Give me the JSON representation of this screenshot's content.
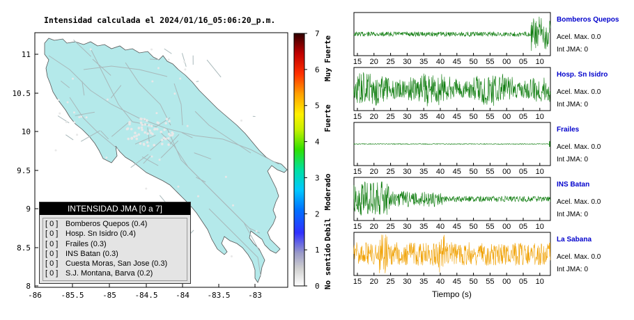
{
  "title": "Intensidad calculada el 2024/01/16_05:06:20_p.m.",
  "map": {
    "lon_ticks": [
      "-86",
      "-85.5",
      "-85",
      "-84.5",
      "-84",
      "-83.5",
      "-83"
    ],
    "lat_ticks": [
      "11",
      "10.5",
      "10",
      "9.5",
      "9",
      "8.5",
      "8"
    ],
    "land_color": "#b4e9ea",
    "road_color": "#a8b8ba"
  },
  "colorbar": {
    "ticks": [
      "0",
      "1",
      "2",
      "3",
      "4",
      "5",
      "6",
      "7"
    ],
    "labels": [
      "No sentido",
      "Debil",
      "Moderado",
      "Fuerte",
      "Muy Fuerte"
    ],
    "range": [
      0,
      7
    ]
  },
  "legend": {
    "title": "INTENSIDAD JMA [0 a 7]",
    "rows": [
      {
        "code": "[ 0 ]",
        "text": "Bomberos Quepos (0.4)"
      },
      {
        "code": "[ 0 ]",
        "text": "Hosp. Sn Isidro (0.4)"
      },
      {
        "code": "[ 0 ]",
        "text": "Frailes (0.3)"
      },
      {
        "code": "[ 0 ]",
        "text": "INS Batan (0.3)"
      },
      {
        "code": "[ 0 ]",
        "text": "Cuesta Moras, San Jose (0.3)"
      },
      {
        "code": "[ 0 ]",
        "text": "S.J. Montana, Barva (0.2)"
      }
    ]
  },
  "time_axis": {
    "ticks": [
      "15",
      "20",
      "25",
      "30",
      "35",
      "40",
      "45",
      "50",
      "55",
      "00",
      "05",
      "10"
    ],
    "label": "Tiempo (s)"
  },
  "stations": [
    {
      "name": "Bomberos Quepos",
      "accel": "Acel. Max. 0.0",
      "jma": "Int JMA: 0",
      "color": "#0a7a0a"
    },
    {
      "name": "Hosp. Sn Isidro",
      "accel": "Acel. Max. 0.0",
      "jma": "Int JMA: 0",
      "color": "#0a7a0a"
    },
    {
      "name": "Frailes",
      "accel": "Acel. Max. 0.0",
      "jma": "Int JMA: 0",
      "color": "#0a7a0a"
    },
    {
      "name": "INS Batan",
      "accel": "Acel. Max. 0.0",
      "jma": "Int JMA: 0",
      "color": "#0a7a0a"
    },
    {
      "name": "La Sabana",
      "accel": "Acel. Max. 0.0",
      "jma": "Int JMA: 0",
      "color": "#f0a000"
    }
  ],
  "chart_data": [
    {
      "type": "map",
      "title": "Intensidad calculada el 2024/01/16_05:06:20_p.m.",
      "xlim": [
        -86,
        -82.5
      ],
      "ylim": [
        8,
        11.3
      ],
      "legend": "INTENSIDAD JMA [0 a 7]",
      "series": [
        {
          "name": "Bomberos Quepos",
          "jma_code": 0,
          "intensity": 0.4
        },
        {
          "name": "Hosp. Sn Isidro",
          "jma_code": 0,
          "intensity": 0.4
        },
        {
          "name": "Frailes",
          "jma_code": 0,
          "intensity": 0.3
        },
        {
          "name": "INS Batan",
          "jma_code": 0,
          "intensity": 0.3
        },
        {
          "name": "Cuesta Moras, San Jose",
          "jma_code": 0,
          "intensity": 0.3
        },
        {
          "name": "S.J. Montana, Barva",
          "jma_code": 0,
          "intensity": 0.2
        }
      ]
    },
    {
      "type": "line",
      "xlabel": "Tiempo (s)",
      "x_tick_labels": [
        "15",
        "20",
        "25",
        "30",
        "35",
        "40",
        "45",
        "50",
        "55",
        "00",
        "05",
        "10"
      ],
      "series": [
        {
          "name": "Bomberos Quepos",
          "acel_max": 0.0,
          "int_jma": 0
        },
        {
          "name": "Hosp. Sn Isidro",
          "acel_max": 0.0,
          "int_jma": 0
        },
        {
          "name": "Frailes",
          "acel_max": 0.0,
          "int_jma": 0
        },
        {
          "name": "INS Batan",
          "acel_max": 0.0,
          "int_jma": 0
        },
        {
          "name": "La Sabana",
          "acel_max": 0.0,
          "int_jma": 0
        }
      ]
    }
  ]
}
